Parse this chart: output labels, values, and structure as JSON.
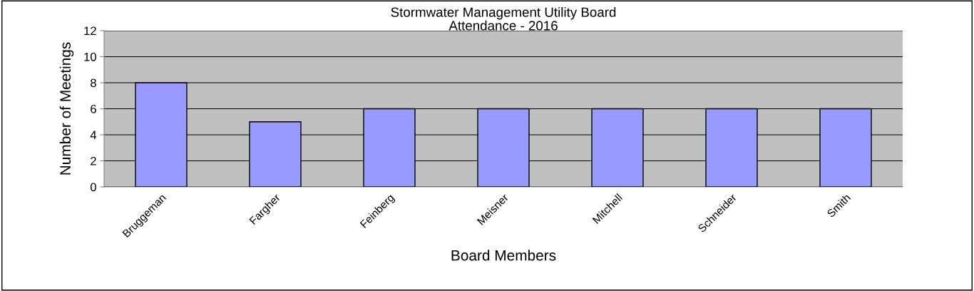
{
  "chart_data": {
    "type": "bar",
    "title": "Stormwater Management Utility Board\nAttendance - 2016",
    "xlabel": "Board Members",
    "ylabel": "Number of Meetings",
    "categories": [
      "Bruggeman",
      "Fargher",
      "Feinberg",
      "Meisner",
      "Mitchell",
      "Schneider",
      "Smith"
    ],
    "values": [
      8,
      5,
      6,
      6,
      6,
      6,
      6
    ],
    "color": "#9999ff",
    "ylim": [
      0,
      12
    ],
    "yticks": [
      0,
      2,
      4,
      6,
      8,
      10,
      12
    ],
    "grid": "y",
    "legend": false
  }
}
